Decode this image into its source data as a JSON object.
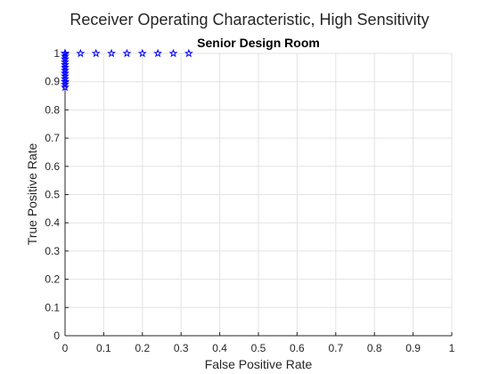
{
  "figure": {
    "title": "Receiver Operating Characteristic, High Sensitivity"
  },
  "chart_data": {
    "type": "scatter",
    "title": "Senior Design Room",
    "xlabel": "False Positive Rate",
    "ylabel": "True Positive Rate",
    "xlim": [
      0,
      1
    ],
    "ylim": [
      0,
      1
    ],
    "xticks": [
      0,
      0.1,
      0.2,
      0.3,
      0.4,
      0.5,
      0.6,
      0.7,
      0.8,
      0.9,
      1
    ],
    "xtick_labels": [
      "0",
      "0.1",
      "0.2",
      "0.3",
      "0.4",
      "0.5",
      "0.6",
      "0.7",
      "0.8",
      "0.9",
      "1"
    ],
    "yticks": [
      0,
      0.1,
      0.2,
      0.3,
      0.4,
      0.5,
      0.6,
      0.7,
      0.8,
      0.9,
      1
    ],
    "ytick_labels": [
      "0",
      "0.1",
      "0.2",
      "0.3",
      "0.4",
      "0.5",
      "0.6",
      "0.7",
      "0.8",
      "0.9",
      "1"
    ],
    "grid": true,
    "marker": "star",
    "marker_color": "#0000ff",
    "series": [
      {
        "x": [
          0,
          0,
          0,
          0,
          0,
          0,
          0,
          0,
          0,
          0,
          0,
          0,
          0,
          0,
          0,
          0.04,
          0.08,
          0.12,
          0.16,
          0.2,
          0.24,
          0.28,
          0.32
        ],
        "y": [
          0.88,
          0.89,
          0.9,
          0.91,
          0.92,
          0.93,
          0.94,
          0.95,
          0.96,
          0.97,
          0.98,
          0.99,
          1,
          1,
          1,
          1,
          1,
          1,
          1,
          1,
          1,
          1,
          1
        ]
      }
    ]
  }
}
